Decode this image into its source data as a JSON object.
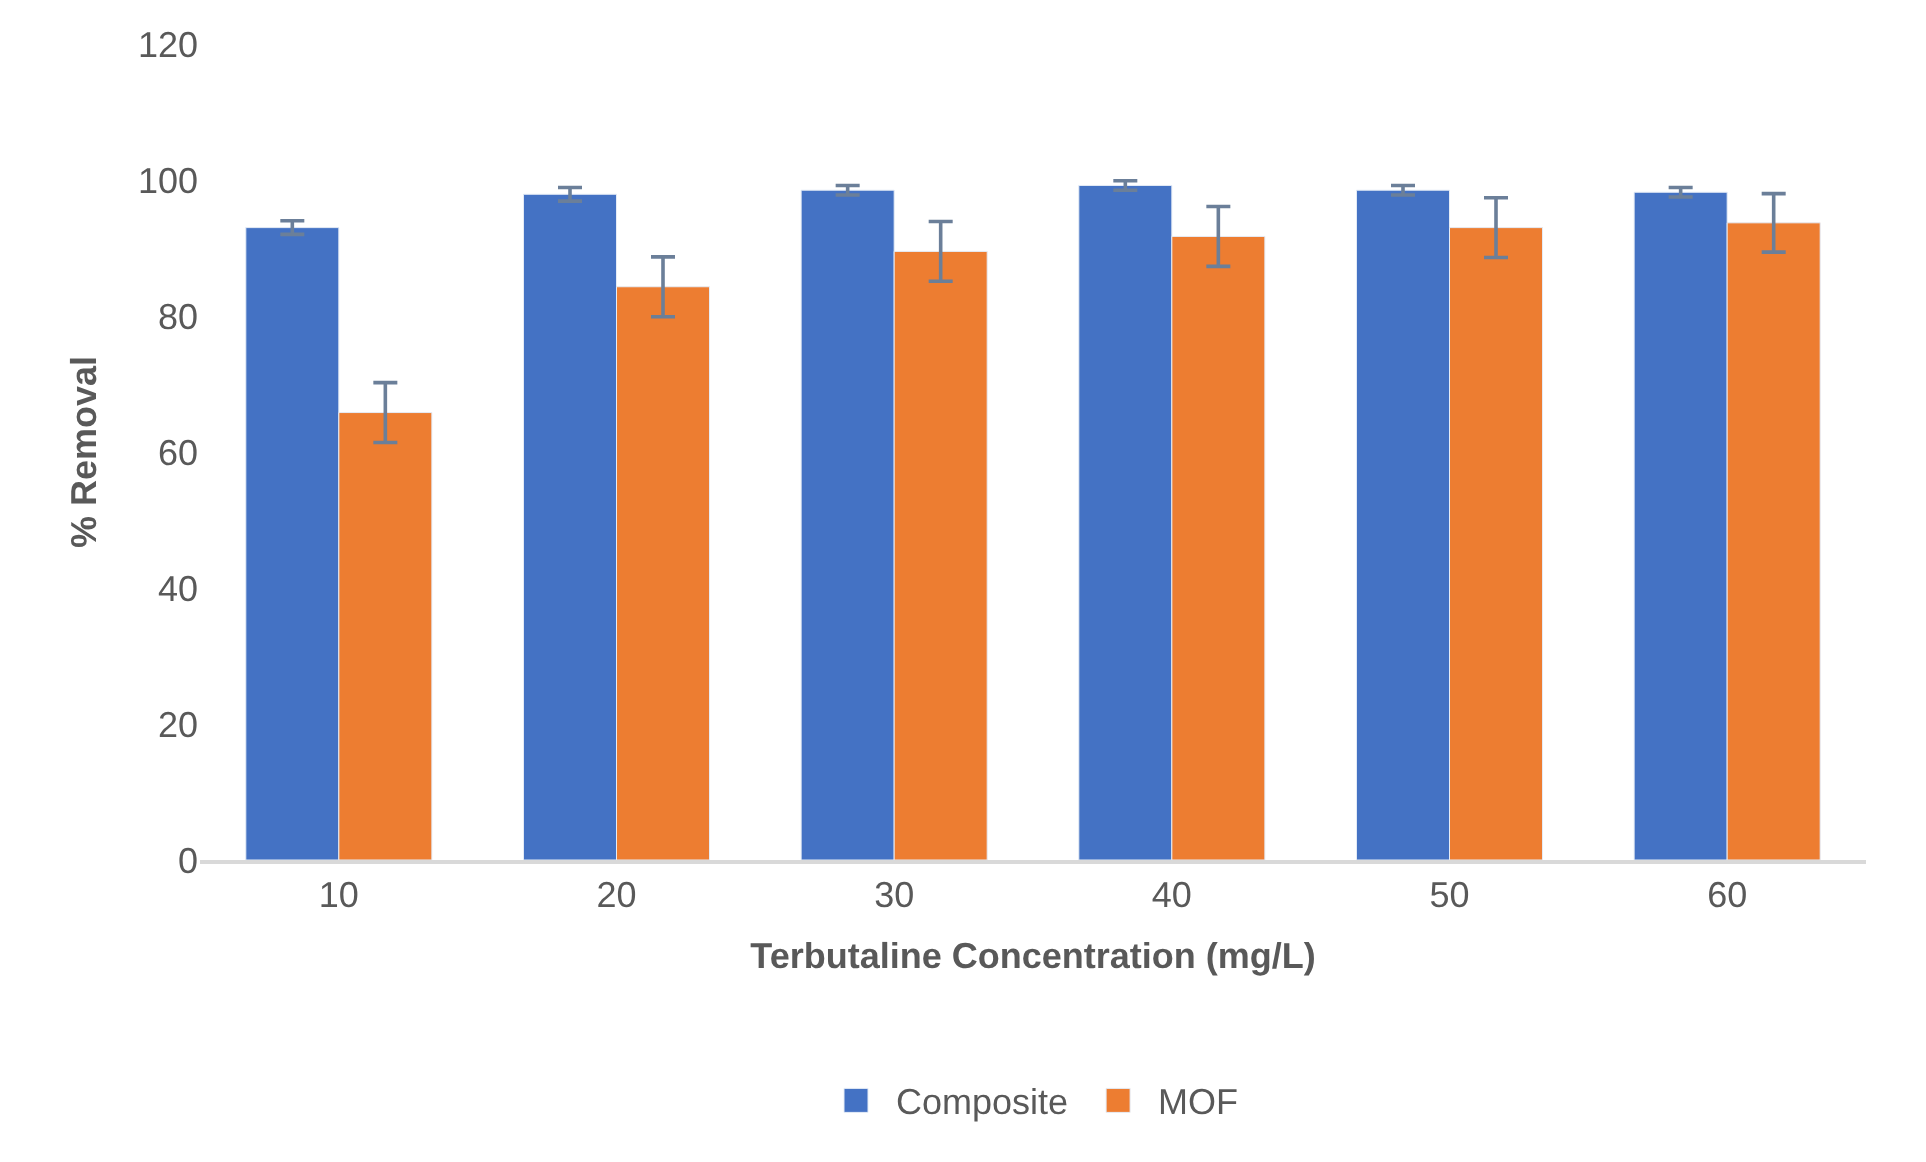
{
  "chart_data": {
    "type": "bar",
    "xlabel": "Terbutaline Concentration (mg/L)",
    "ylabel": "% Removal",
    "categories": [
      "10",
      "20",
      "30",
      "40",
      "50",
      "60"
    ],
    "series": [
      {
        "name": "Composite",
        "color": "#4472c4",
        "values": [
          93.0,
          97.9,
          98.5,
          99.2,
          98.5,
          98.2
        ],
        "errors": [
          1.0,
          1.0,
          0.7,
          0.7,
          0.7,
          0.7
        ]
      },
      {
        "name": "MOF",
        "color": "#ed7d31",
        "values": [
          65.8,
          84.3,
          89.5,
          91.7,
          93.0,
          93.7
        ],
        "errors": [
          4.4,
          4.4,
          4.4,
          4.4,
          4.4,
          4.3
        ]
      }
    ],
    "ylim": [
      0,
      120
    ],
    "yticks": [
      0,
      20,
      40,
      60,
      80,
      100,
      120
    ],
    "grid": false,
    "legend": "bottom"
  }
}
